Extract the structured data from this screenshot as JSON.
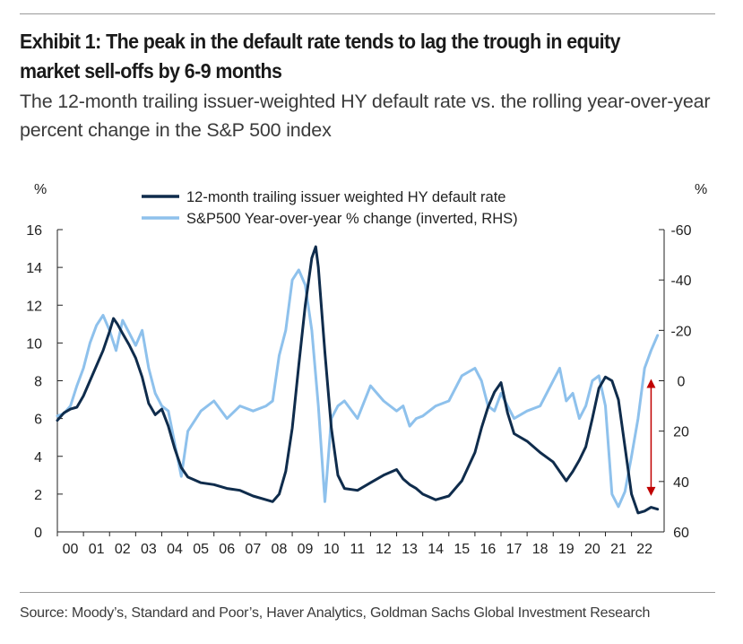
{
  "header": {
    "title": "Exhibit 1: The peak in the default rate tends to lag the trough in equity market sell-offs by 6-9 months",
    "subtitle": "The 12-month trailing issuer-weighted HY default rate vs. the rolling year-over-year percent change in the S&P 500 index"
  },
  "footer": {
    "source": "Source: Moody’s, Standard and Poor’s, Haver Analytics, Goldman Sachs Global Investment Research"
  },
  "chart_data": {
    "type": "line",
    "title": "",
    "left_axis": {
      "unit_label": "%",
      "range": [
        0,
        16
      ],
      "ticks": [
        0,
        2,
        4,
        6,
        8,
        10,
        12,
        14,
        16
      ]
    },
    "right_axis": {
      "unit_label": "%",
      "range": [
        60,
        -60
      ],
      "inverted": true,
      "ticks": [
        60,
        40,
        20,
        0,
        -20,
        -40,
        -60
      ]
    },
    "x_axis": {
      "range": [
        2000,
        2023.25
      ],
      "tick_labels": [
        "00",
        "01",
        "02",
        "03",
        "04",
        "05",
        "06",
        "07",
        "08",
        "09",
        "10",
        "11",
        "12",
        "13",
        "14",
        "15",
        "16",
        "17",
        "18",
        "19",
        "20",
        "21",
        "22"
      ]
    },
    "legend": {
      "position": "top-center"
    },
    "grid": false,
    "annotations": [
      {
        "type": "double-arrow",
        "x": 2022.75,
        "from_right_value": 0,
        "to_right_value": 45,
        "color": "#c00000"
      }
    ],
    "series": [
      {
        "name": "12-month trailing issuer weighted HY default rate",
        "axis": "left",
        "color": "#0f2c4c",
        "points": [
          [
            2000.0,
            5.9
          ],
          [
            2000.25,
            6.3
          ],
          [
            2000.5,
            6.5
          ],
          [
            2000.75,
            6.6
          ],
          [
            2001.0,
            7.2
          ],
          [
            2001.25,
            8.0
          ],
          [
            2001.5,
            8.8
          ],
          [
            2001.75,
            9.6
          ],
          [
            2002.0,
            10.6
          ],
          [
            2002.15,
            11.3
          ],
          [
            2002.3,
            11.0
          ],
          [
            2002.5,
            10.5
          ],
          [
            2002.75,
            9.9
          ],
          [
            2003.0,
            9.2
          ],
          [
            2003.25,
            8.2
          ],
          [
            2003.5,
            6.8
          ],
          [
            2003.75,
            6.2
          ],
          [
            2004.0,
            6.5
          ],
          [
            2004.25,
            5.6
          ],
          [
            2004.5,
            4.4
          ],
          [
            2004.75,
            3.4
          ],
          [
            2005.0,
            2.9
          ],
          [
            2005.5,
            2.6
          ],
          [
            2006.0,
            2.5
          ],
          [
            2006.5,
            2.3
          ],
          [
            2007.0,
            2.2
          ],
          [
            2007.5,
            1.9
          ],
          [
            2008.0,
            1.7
          ],
          [
            2008.25,
            1.6
          ],
          [
            2008.5,
            2.0
          ],
          [
            2008.75,
            3.2
          ],
          [
            2009.0,
            5.5
          ],
          [
            2009.25,
            8.8
          ],
          [
            2009.5,
            12.0
          ],
          [
            2009.75,
            14.5
          ],
          [
            2009.9,
            15.1
          ],
          [
            2010.0,
            14.0
          ],
          [
            2010.25,
            9.5
          ],
          [
            2010.5,
            5.5
          ],
          [
            2010.75,
            3.0
          ],
          [
            2011.0,
            2.3
          ],
          [
            2011.5,
            2.2
          ],
          [
            2012.0,
            2.6
          ],
          [
            2012.5,
            3.0
          ],
          [
            2013.0,
            3.3
          ],
          [
            2013.25,
            2.8
          ],
          [
            2013.5,
            2.5
          ],
          [
            2013.75,
            2.3
          ],
          [
            2014.0,
            2.0
          ],
          [
            2014.5,
            1.7
          ],
          [
            2015.0,
            1.9
          ],
          [
            2015.5,
            2.7
          ],
          [
            2016.0,
            4.2
          ],
          [
            2016.25,
            5.5
          ],
          [
            2016.5,
            6.6
          ],
          [
            2016.75,
            7.4
          ],
          [
            2017.0,
            7.9
          ],
          [
            2017.25,
            6.3
          ],
          [
            2017.5,
            5.2
          ],
          [
            2018.0,
            4.8
          ],
          [
            2018.5,
            4.2
          ],
          [
            2019.0,
            3.7
          ],
          [
            2019.25,
            3.2
          ],
          [
            2019.5,
            2.7
          ],
          [
            2019.75,
            3.2
          ],
          [
            2020.0,
            3.8
          ],
          [
            2020.25,
            4.5
          ],
          [
            2020.5,
            6.0
          ],
          [
            2020.75,
            7.6
          ],
          [
            2021.0,
            8.2
          ],
          [
            2021.25,
            8.0
          ],
          [
            2021.5,
            7.0
          ],
          [
            2021.75,
            4.5
          ],
          [
            2022.0,
            2.0
          ],
          [
            2022.25,
            1.0
          ],
          [
            2022.5,
            1.1
          ],
          [
            2022.75,
            1.3
          ],
          [
            2023.0,
            1.2
          ]
        ]
      },
      {
        "name": "S&P500 Year-over-year % change (inverted, RHS)",
        "axis": "right",
        "color": "#8ec1ec",
        "points": [
          [
            2000.0,
            14
          ],
          [
            2000.25,
            13
          ],
          [
            2000.5,
            10
          ],
          [
            2000.75,
            2
          ],
          [
            2001.0,
            -5
          ],
          [
            2001.25,
            -15
          ],
          [
            2001.5,
            -22
          ],
          [
            2001.75,
            -26
          ],
          [
            2002.0,
            -20
          ],
          [
            2002.25,
            -12
          ],
          [
            2002.5,
            -24
          ],
          [
            2002.75,
            -19
          ],
          [
            2003.0,
            -14
          ],
          [
            2003.25,
            -20
          ],
          [
            2003.5,
            -5
          ],
          [
            2003.75,
            5
          ],
          [
            2004.0,
            10
          ],
          [
            2004.25,
            12
          ],
          [
            2004.5,
            25
          ],
          [
            2004.75,
            38
          ],
          [
            2005.0,
            20
          ],
          [
            2005.5,
            12
          ],
          [
            2006.0,
            8
          ],
          [
            2006.5,
            15
          ],
          [
            2007.0,
            10
          ],
          [
            2007.5,
            12
          ],
          [
            2008.0,
            10
          ],
          [
            2008.25,
            8
          ],
          [
            2008.5,
            -10
          ],
          [
            2008.75,
            -20
          ],
          [
            2009.0,
            -40
          ],
          [
            2009.25,
            -44
          ],
          [
            2009.5,
            -38
          ],
          [
            2009.75,
            -20
          ],
          [
            2010.0,
            10
          ],
          [
            2010.25,
            48
          ],
          [
            2010.5,
            15
          ],
          [
            2010.75,
            10
          ],
          [
            2011.0,
            8
          ],
          [
            2011.5,
            15
          ],
          [
            2012.0,
            2
          ],
          [
            2012.5,
            8
          ],
          [
            2013.0,
            12
          ],
          [
            2013.25,
            10
          ],
          [
            2013.5,
            18
          ],
          [
            2013.75,
            15
          ],
          [
            2014.0,
            14
          ],
          [
            2014.5,
            10
          ],
          [
            2015.0,
            8
          ],
          [
            2015.5,
            -2
          ],
          [
            2016.0,
            -5
          ],
          [
            2016.25,
            0
          ],
          [
            2016.5,
            10
          ],
          [
            2016.75,
            12
          ],
          [
            2017.0,
            5
          ],
          [
            2017.5,
            15
          ],
          [
            2018.0,
            12
          ],
          [
            2018.5,
            10
          ],
          [
            2019.0,
            0
          ],
          [
            2019.25,
            -5
          ],
          [
            2019.5,
            8
          ],
          [
            2019.75,
            5
          ],
          [
            2020.0,
            15
          ],
          [
            2020.25,
            10
          ],
          [
            2020.5,
            0
          ],
          [
            2020.75,
            -2
          ],
          [
            2021.0,
            10
          ],
          [
            2021.25,
            45
          ],
          [
            2021.5,
            50
          ],
          [
            2021.75,
            44
          ],
          [
            2022.0,
            30
          ],
          [
            2022.25,
            15
          ],
          [
            2022.5,
            -5
          ],
          [
            2022.75,
            -12
          ],
          [
            2023.0,
            -18
          ]
        ]
      }
    ]
  }
}
